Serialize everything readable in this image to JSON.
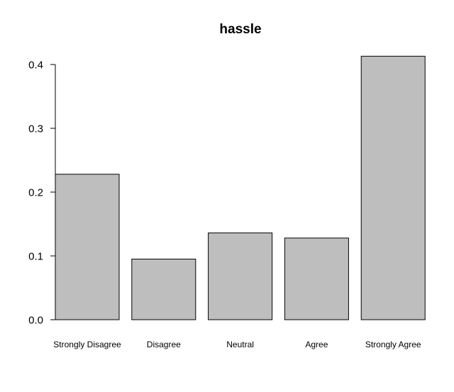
{
  "chart_data": {
    "type": "bar",
    "title": "hassle",
    "xlabel": "",
    "ylabel": "",
    "categories": [
      "Strongly Disagree",
      "Disagree",
      "Neutral",
      "Agree",
      "Strongly Agree"
    ],
    "values": [
      0.228,
      0.095,
      0.136,
      0.128,
      0.413
    ],
    "ylim": [
      0,
      0.4
    ],
    "yticks": [
      0.0,
      0.1,
      0.2,
      0.3,
      0.4
    ],
    "ytick_labels": [
      "0.0",
      "0.1",
      "0.2",
      "0.3",
      "0.4"
    ],
    "bar_color": "#bebebe",
    "grid": false,
    "legend": "none"
  }
}
